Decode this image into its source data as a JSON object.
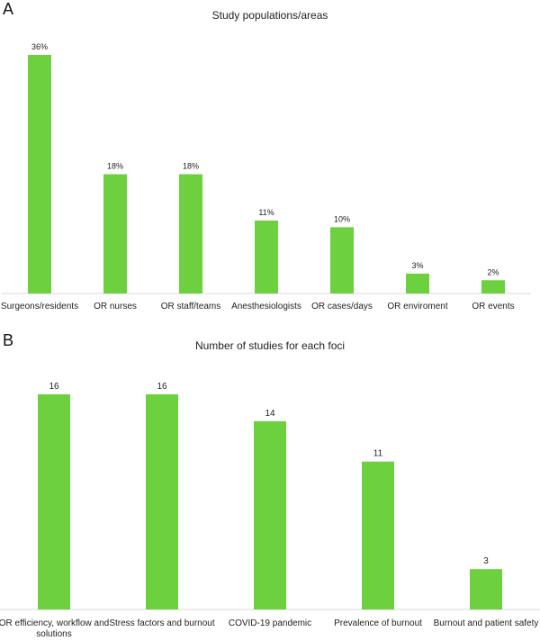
{
  "panels": [
    {
      "letter": "A",
      "title": "Study populations/areas"
    },
    {
      "letter": "B",
      "title": "Number of studies for each foci"
    }
  ],
  "colors": {
    "bar": "#6cd03f",
    "axis": "#d9d9d9"
  },
  "chart_data": [
    {
      "type": "bar",
      "title": "Study populations/areas",
      "categories": [
        "Surgeons/residents",
        "OR nurses",
        "OR staff/teams",
        "Anesthesiologists",
        "OR cases/days",
        "OR enviroment",
        "OR events"
      ],
      "values": [
        36,
        18,
        18,
        11,
        10,
        3,
        2
      ],
      "data_labels": [
        "36%",
        "18%",
        "18%",
        "11%",
        "10%",
        "3%",
        "2%"
      ],
      "unit": "%",
      "ylim": [
        0,
        36
      ],
      "grid": false,
      "legend": "none"
    },
    {
      "type": "bar",
      "title": "Number of studies for each foci",
      "categories": [
        "OR efficiency, workflow and solutions",
        "Stress factors and burnout",
        "COVID-19 pandemic",
        "Prevalence of burnout",
        "Burnout and patient safety"
      ],
      "values": [
        16,
        16,
        14,
        11,
        3
      ],
      "data_labels": [
        "16",
        "16",
        "14",
        "11",
        "3"
      ],
      "ylim": [
        0,
        16
      ],
      "grid": false,
      "legend": "none"
    }
  ]
}
